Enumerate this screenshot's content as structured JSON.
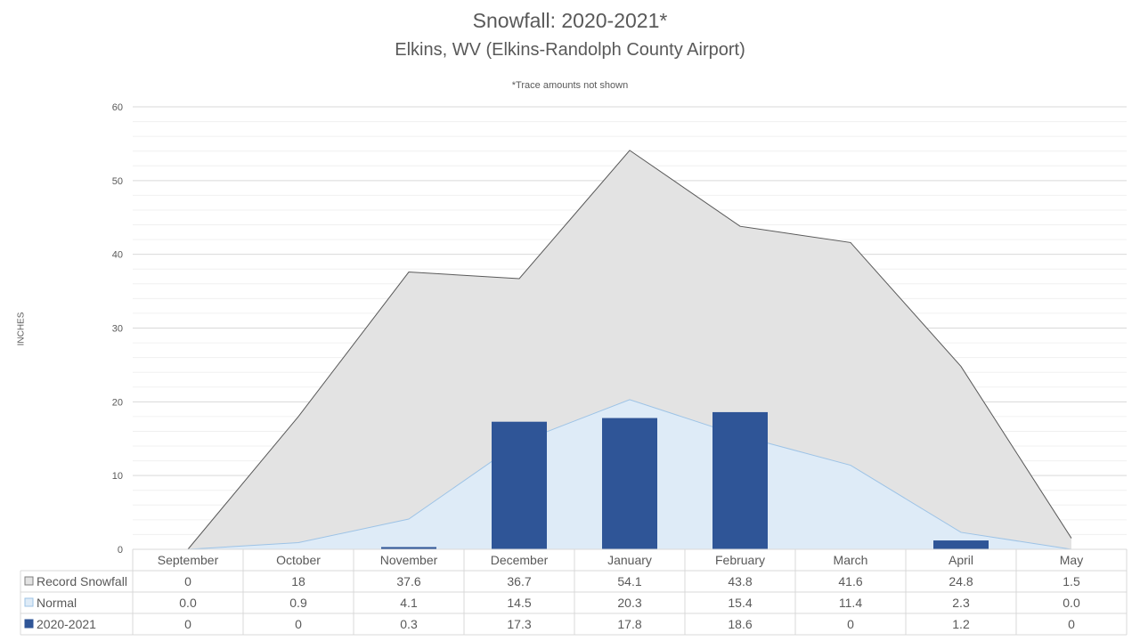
{
  "chart_data": {
    "type": "bar",
    "title": "Snowfall: 2020-2021*",
    "subtitle": "Elkins, WV (Elkins-Randolph County Airport)",
    "note": "*Trace amounts not shown",
    "ylabel": "INCHES",
    "xlabel": "",
    "ylim": [
      0,
      60
    ],
    "yticks": [
      0,
      10,
      20,
      30,
      40,
      50,
      60
    ],
    "grid": true,
    "legend": "data-table-left",
    "categories": [
      "September",
      "October",
      "November",
      "December",
      "January",
      "February",
      "March",
      "April",
      "May"
    ],
    "series": [
      {
        "name": "Record Snowfall",
        "type": "area",
        "color": "#e3e3e3",
        "stroke": "#595959",
        "values": [
          0,
          18,
          37.6,
          36.7,
          54.1,
          43.8,
          41.6,
          24.8,
          1.5
        ],
        "labels": [
          "0",
          "18",
          "37.6",
          "36.7",
          "54.1",
          "43.8",
          "41.6",
          "24.8",
          "1.5"
        ]
      },
      {
        "name": "Normal",
        "type": "area",
        "color": "#deebf7",
        "stroke": "#9dc3e6",
        "values": [
          0.0,
          0.9,
          4.1,
          14.5,
          20.3,
          15.4,
          11.4,
          2.3,
          0.0
        ],
        "labels": [
          "0.0",
          "0.9",
          "4.1",
          "14.5",
          "20.3",
          "15.4",
          "11.4",
          "2.3",
          "0.0"
        ]
      },
      {
        "name": "2020-2021",
        "type": "bar",
        "color": "#2f5597",
        "stroke": "#2f5597",
        "values": [
          0,
          0,
          0.3,
          17.3,
          17.8,
          18.6,
          0,
          1.2,
          0
        ],
        "labels": [
          "0",
          "0",
          "0.3",
          "17.3",
          "17.8",
          "18.6",
          "0",
          "1.2",
          "0"
        ]
      }
    ]
  }
}
